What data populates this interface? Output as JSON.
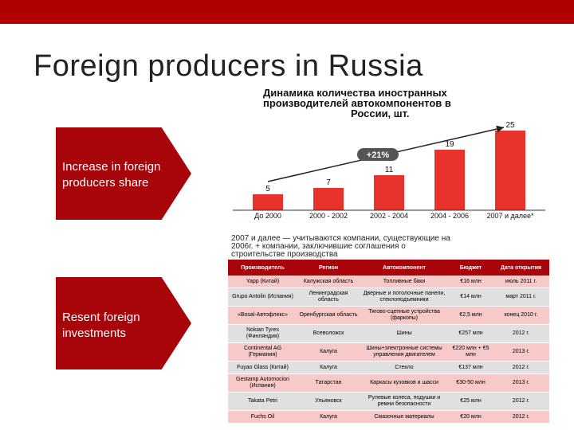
{
  "header": {
    "bar_color": "#b00000"
  },
  "title": "Foreign producers in Russia",
  "callouts": {
    "first": {
      "line1": "Increase in foreign",
      "line2": "producers share"
    },
    "second": {
      "line1": "Resent foreign",
      "line2": "investments"
    }
  },
  "chart_data": {
    "type": "bar",
    "title_line1": "Динамика количества иностранных",
    "title_line2": "производителей автокомпонентов в",
    "title_line3": "России, шт.",
    "categories": [
      "До 2000",
      "2000 - 2002",
      "2002 - 2004",
      "2004 - 2006",
      "2007 и далее*"
    ],
    "values": [
      5,
      7,
      11,
      19,
      25
    ],
    "labels": [
      "5",
      "7",
      "11",
      "19",
      "25"
    ],
    "growth_label": "+21%",
    "bar_color": "#e8332c",
    "footnote_line1": "2007 и далее — учитываются компании, существующие на",
    "footnote_line2": "2006г. + компании, заключившие соглашения о",
    "footnote_line3": "строительстве производства"
  },
  "table": {
    "headers": [
      "Производитель",
      "Регион",
      "Автокомпонент",
      "Бюджет",
      "Дата открытия"
    ],
    "rows": [
      [
        "Yapp (Китай)",
        "Калужская область",
        "Топливные баки",
        "€16 млн",
        "июль 2011 г."
      ],
      [
        "Grupo Antolin (Испания)",
        "Ленинградская область",
        "Дверные и потолочные панели, стеклоподъемники",
        "€14 млн",
        "март 2011 г."
      ],
      [
        "«Bosal-Автофлекс»",
        "Оренбургская область",
        "Тягово-сцепные устройства (фаркопы)",
        "€2,5 млн",
        "конец 2010 г."
      ],
      [
        "Nokian Tyres (Финляндия)",
        "Всеволожск",
        "Шины",
        "€257 млн",
        "2012 г."
      ],
      [
        "Continental AG (Германия)",
        "Калуга",
        "Шины+электронные системы управления двигателем",
        "€220 млн + €5 млн",
        "2013 г."
      ],
      [
        "Fuyao Glass (Китай)",
        "Калуга",
        "Стекло",
        "€137 млн",
        "2012 г."
      ],
      [
        "Gestamp Automocion (Испания)",
        "Татарстан",
        "Каркасы кузовков и шасси",
        "€30-50 млн",
        "2013 г."
      ],
      [
        "Takata Petri",
        "Ульяновск",
        "Рулевые колеса, подушки и ремни безопасности",
        "€25 млн",
        "2012 г."
      ],
      [
        "Fuchs Oil",
        "Калуга",
        "Смазочные материалы",
        "€20 млн",
        "2012 г."
      ]
    ]
  }
}
